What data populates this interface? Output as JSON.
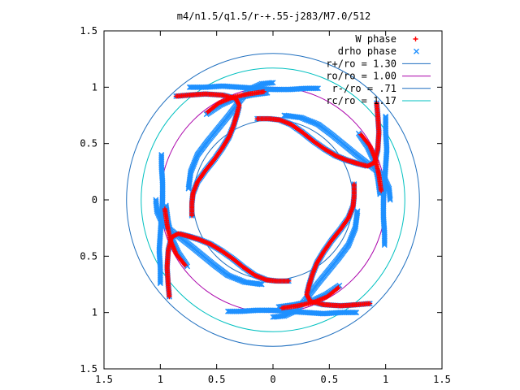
{
  "chart_data": {
    "type": "scatter",
    "title": "m4/n1.5/q1.5/r-+.55-j283/M7.0/512",
    "xlim": [
      -1.5,
      1.5
    ],
    "ylim": [
      -1.5,
      1.5
    ],
    "x_ticks": [
      -1.5,
      -1,
      -0.5,
      0,
      0.5,
      1,
      1.5
    ],
    "x_tick_labels": [
      "1.5",
      "1",
      "0.5",
      "0",
      "0.5",
      "1",
      "1.5"
    ],
    "y_ticks": [
      1.5,
      1,
      0.5,
      0,
      -0.5,
      -1,
      -1.5
    ],
    "y_tick_labels": [
      "1.5",
      "1",
      "0.5",
      "0",
      "0.5",
      "1",
      "1.5"
    ],
    "legend_position": "top-right",
    "series": [
      {
        "name": "W phase",
        "marker": "+",
        "color": "#ff0000",
        "kind": "points",
        "symmetry": 4,
        "arm": [
          [
            -0.14,
            0.72
          ],
          [
            -0.03,
            0.72
          ],
          [
            0.06,
            0.71
          ],
          [
            0.16,
            0.67
          ],
          [
            0.26,
            0.6
          ],
          [
            0.36,
            0.52
          ],
          [
            0.46,
            0.45
          ],
          [
            0.56,
            0.39
          ],
          [
            0.66,
            0.35
          ],
          [
            0.76,
            0.32
          ],
          [
            0.84,
            0.3
          ],
          [
            0.9,
            0.33
          ],
          [
            0.93,
            0.45
          ],
          [
            0.94,
            0.6
          ],
          [
            0.93,
            0.75
          ],
          [
            0.92,
            0.86
          ]
        ],
        "ring": [
          [
            0.78,
            0.58
          ],
          [
            0.86,
            0.48
          ],
          [
            0.91,
            0.36
          ],
          [
            0.94,
            0.22
          ],
          [
            0.96,
            0.08
          ]
        ]
      },
      {
        "name": "drho phase",
        "marker": "x",
        "color": "#1e90ff",
        "kind": "points",
        "symmetry": 4,
        "arm": [
          [
            -0.14,
            0.72
          ],
          [
            -0.03,
            0.72
          ],
          [
            0.06,
            0.71
          ],
          [
            0.16,
            0.67
          ],
          [
            0.26,
            0.6
          ],
          [
            0.36,
            0.52
          ],
          [
            0.46,
            0.45
          ],
          [
            0.56,
            0.39
          ],
          [
            0.66,
            0.35
          ],
          [
            0.76,
            0.32
          ],
          [
            0.84,
            0.3
          ],
          [
            0.9,
            0.33
          ],
          [
            0.93,
            0.45
          ],
          [
            0.94,
            0.6
          ],
          [
            0.93,
            0.75
          ],
          [
            0.92,
            0.86
          ]
        ],
        "ring": [
          [
            0.76,
            0.59
          ],
          [
            0.84,
            0.47
          ],
          [
            0.9,
            0.34
          ],
          [
            0.93,
            0.2
          ],
          [
            0.95,
            0.05
          ]
        ],
        "outer": [
          [
            -0.74,
            1.0
          ],
          [
            -0.6,
            1.0
          ],
          [
            -0.45,
            1.01
          ],
          [
            -0.3,
            1.0
          ],
          [
            -0.15,
            0.99
          ],
          [
            0,
            0.98
          ],
          [
            0.15,
            0.98
          ],
          [
            0.3,
            0.99
          ],
          [
            0.4,
            0.99
          ]
        ],
        "inner": [
          [
            -0.75,
            0.1
          ],
          [
            -0.73,
            0.25
          ],
          [
            -0.67,
            0.4
          ],
          [
            -0.58,
            0.52
          ],
          [
            -0.49,
            0.63
          ],
          [
            -0.4,
            0.74
          ],
          [
            -0.3,
            0.87
          ],
          [
            -0.21,
            0.98
          ],
          [
            -0.1,
            1.03
          ],
          [
            0.0,
            1.04
          ]
        ]
      },
      {
        "name": "r+/ro = 1.30",
        "radius": 1.3,
        "color": "#1f6fbf",
        "kind": "circle"
      },
      {
        "name": "ro/ro = 1.00",
        "radius": 1.0,
        "color": "#aa00aa",
        "kind": "circle"
      },
      {
        "name": "r-/ro = .71",
        "radius": 0.71,
        "color": "#1f6fbf",
        "kind": "circle"
      },
      {
        "name": "rc/ro = 1.17",
        "radius": 1.17,
        "color": "#00c0c0",
        "kind": "circle"
      }
    ]
  }
}
